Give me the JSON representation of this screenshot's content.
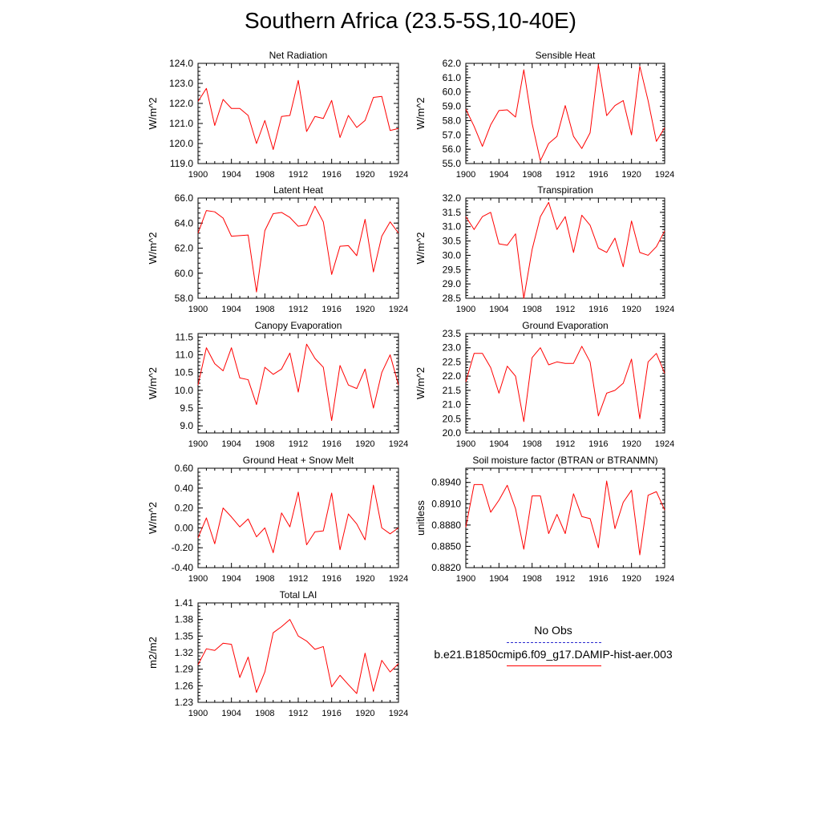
{
  "figure": {
    "title": "Southern Africa (23.5-5S,10-40E)",
    "line_color": "#ff0000",
    "obs_color": "#2b2bd0"
  },
  "legend": {
    "obs_label": "No Obs",
    "model_label": "b.e21.B1850cmip6.f09_g17.DAMIP-hist-aer.003"
  },
  "chart_data": [
    {
      "type": "line",
      "title": "Net Radiation",
      "ylabel": "W/m^2",
      "xlim": [
        1900,
        1924
      ],
      "x_ticks": [
        "1900",
        "1904",
        "1908",
        "1912",
        "1916",
        "1920",
        "1924"
      ],
      "ylim": [
        119.0,
        124.0
      ],
      "y_ticks": [
        "119.0",
        "120.0",
        "121.0",
        "122.0",
        "123.0",
        "124.0"
      ],
      "y_minor_step": 0.2,
      "x": [
        1900,
        1901,
        1902,
        1903,
        1904,
        1905,
        1906,
        1907,
        1908,
        1909,
        1910,
        1911,
        1912,
        1913,
        1914,
        1915,
        1916,
        1917,
        1918,
        1919,
        1920,
        1921,
        1922,
        1923,
        1924
      ],
      "series": [
        {
          "values": [
            122.1,
            122.75,
            120.9,
            122.2,
            121.75,
            121.75,
            121.4,
            120.0,
            121.15,
            119.7,
            121.35,
            121.4,
            123.15,
            120.6,
            121.35,
            121.25,
            122.15,
            120.3,
            121.4,
            120.8,
            121.15,
            122.3,
            122.35,
            120.65,
            120.75
          ]
        }
      ]
    },
    {
      "type": "line",
      "title": "Sensible Heat",
      "ylabel": "W/m^2",
      "xlim": [
        1900,
        1924
      ],
      "x_ticks": [
        "1900",
        "1904",
        "1908",
        "1912",
        "1916",
        "1920",
        "1924"
      ],
      "ylim": [
        55.0,
        62.0
      ],
      "y_ticks": [
        "55.0",
        "56.0",
        "57.0",
        "58.0",
        "59.0",
        "60.0",
        "61.0",
        "62.0"
      ],
      "y_minor_step": 0.2,
      "x": [
        1900,
        1901,
        1902,
        1903,
        1904,
        1905,
        1906,
        1907,
        1908,
        1909,
        1910,
        1911,
        1912,
        1913,
        1914,
        1915,
        1916,
        1917,
        1918,
        1919,
        1920,
        1921,
        1922,
        1923,
        1924
      ],
      "series": [
        {
          "values": [
            58.8,
            57.6,
            56.2,
            57.7,
            58.7,
            58.75,
            58.25,
            61.55,
            57.8,
            55.2,
            56.4,
            56.9,
            59.05,
            56.9,
            56.05,
            57.15,
            61.9,
            58.35,
            59.05,
            59.4,
            57.0,
            61.8,
            59.4,
            56.55,
            57.5
          ]
        }
      ]
    },
    {
      "type": "line",
      "title": "Latent Heat",
      "ylabel": "W/m^2",
      "xlim": [
        1900,
        1924
      ],
      "x_ticks": [
        "1900",
        "1904",
        "1908",
        "1912",
        "1916",
        "1920",
        "1924"
      ],
      "ylim": [
        58.0,
        66.0
      ],
      "y_ticks": [
        "58.0",
        "60.0",
        "62.0",
        "64.0",
        "66.0"
      ],
      "y_minor_step": 0.4,
      "x": [
        1900,
        1901,
        1902,
        1903,
        1904,
        1905,
        1906,
        1907,
        1908,
        1909,
        1910,
        1911,
        1912,
        1913,
        1914,
        1915,
        1916,
        1917,
        1918,
        1919,
        1920,
        1921,
        1922,
        1923,
        1924
      ],
      "series": [
        {
          "values": [
            63.2,
            65.0,
            64.9,
            64.4,
            62.95,
            63.0,
            63.05,
            58.5,
            63.4,
            64.75,
            64.85,
            64.45,
            63.75,
            63.85,
            65.35,
            64.1,
            59.9,
            62.15,
            62.2,
            61.4,
            64.3,
            60.1,
            62.95,
            64.1,
            63.2
          ]
        }
      ]
    },
    {
      "type": "line",
      "title": "Transpiration",
      "ylabel": "W/m^2",
      "xlim": [
        1900,
        1924
      ],
      "x_ticks": [
        "1900",
        "1904",
        "1908",
        "1912",
        "1916",
        "1920",
        "1924"
      ],
      "ylim": [
        28.5,
        32.0
      ],
      "y_ticks": [
        "28.5",
        "29.0",
        "29.5",
        "30.0",
        "30.5",
        "31.0",
        "31.5",
        "32.0"
      ],
      "y_minor_step": 0.1,
      "x": [
        1900,
        1901,
        1902,
        1903,
        1904,
        1905,
        1906,
        1907,
        1908,
        1909,
        1910,
        1911,
        1912,
        1913,
        1914,
        1915,
        1916,
        1917,
        1918,
        1919,
        1920,
        1921,
        1922,
        1923,
        1924
      ],
      "series": [
        {
          "values": [
            31.35,
            30.9,
            31.35,
            31.5,
            30.4,
            30.35,
            30.75,
            28.5,
            30.2,
            31.35,
            31.85,
            30.9,
            31.35,
            30.1,
            31.4,
            31.05,
            30.25,
            30.1,
            30.6,
            29.6,
            31.2,
            30.1,
            30.0,
            30.3,
            30.85
          ]
        }
      ]
    },
    {
      "type": "line",
      "title": "Canopy Evaporation",
      "ylabel": "W/m^2",
      "xlim": [
        1900,
        1924
      ],
      "x_ticks": [
        "1900",
        "1904",
        "1908",
        "1912",
        "1916",
        "1920",
        "1924"
      ],
      "ylim": [
        8.8,
        11.6
      ],
      "y_ticks": [
        "9.0",
        "9.5",
        "10.0",
        "10.5",
        "11.0",
        "11.5"
      ],
      "y_minor_step": 0.1,
      "x": [
        1900,
        1901,
        1902,
        1903,
        1904,
        1905,
        1906,
        1907,
        1908,
        1909,
        1910,
        1911,
        1912,
        1913,
        1914,
        1915,
        1916,
        1917,
        1918,
        1919,
        1920,
        1921,
        1922,
        1923,
        1924
      ],
      "series": [
        {
          "values": [
            10.15,
            11.2,
            10.75,
            10.55,
            11.2,
            10.35,
            10.3,
            9.6,
            10.65,
            10.45,
            10.6,
            11.05,
            9.95,
            11.3,
            10.9,
            10.65,
            9.15,
            10.7,
            10.15,
            10.05,
            10.6,
            9.5,
            10.5,
            11.0,
            10.15
          ]
        }
      ]
    },
    {
      "type": "line",
      "title": "Ground Evaporation",
      "ylabel": "W/m^2",
      "xlim": [
        1900,
        1924
      ],
      "x_ticks": [
        "1900",
        "1904",
        "1908",
        "1912",
        "1916",
        "1920",
        "1924"
      ],
      "ylim": [
        20.0,
        23.5
      ],
      "y_ticks": [
        "20.0",
        "20.5",
        "21.0",
        "21.5",
        "22.0",
        "22.5",
        "23.0",
        "23.5"
      ],
      "y_minor_step": 0.1,
      "x": [
        1900,
        1901,
        1902,
        1903,
        1904,
        1905,
        1906,
        1907,
        1908,
        1909,
        1910,
        1911,
        1912,
        1913,
        1914,
        1915,
        1916,
        1917,
        1918,
        1919,
        1920,
        1921,
        1922,
        1923,
        1924
      ],
      "series": [
        {
          "values": [
            21.8,
            22.8,
            22.8,
            22.3,
            21.4,
            22.35,
            22.0,
            20.4,
            22.65,
            23.0,
            22.4,
            22.5,
            22.45,
            22.45,
            23.05,
            22.5,
            20.6,
            21.4,
            21.5,
            21.75,
            22.6,
            20.5,
            22.5,
            22.8,
            22.1
          ]
        }
      ]
    },
    {
      "type": "line",
      "title": "Ground Heat + Snow Melt",
      "ylabel": "W/m^2",
      "xlim": [
        1900,
        1924
      ],
      "x_ticks": [
        "1900",
        "1904",
        "1908",
        "1912",
        "1916",
        "1920",
        "1924"
      ],
      "ylim": [
        -0.4,
        0.6
      ],
      "y_ticks": [
        "-0.40",
        "-0.20",
        "0.00",
        "0.20",
        "0.40",
        "0.60"
      ],
      "y_minor_step": 0.04,
      "x": [
        1900,
        1901,
        1902,
        1903,
        1904,
        1905,
        1906,
        1907,
        1908,
        1909,
        1910,
        1911,
        1912,
        1913,
        1914,
        1915,
        1916,
        1917,
        1918,
        1919,
        1920,
        1921,
        1922,
        1923,
        1924
      ],
      "series": [
        {
          "values": [
            -0.1,
            0.1,
            -0.16,
            0.2,
            0.11,
            0.01,
            0.09,
            -0.09,
            0.0,
            -0.25,
            0.15,
            0.01,
            0.36,
            -0.17,
            -0.04,
            -0.03,
            0.35,
            -0.22,
            0.14,
            0.04,
            -0.12,
            0.43,
            0.0,
            -0.06,
            0.0
          ]
        }
      ]
    },
    {
      "type": "line",
      "title": "Soil moisture factor (BTRAN or BTRANMN)",
      "ylabel": "unitless",
      "xlim": [
        1900,
        1924
      ],
      "x_ticks": [
        "1900",
        "1904",
        "1908",
        "1912",
        "1916",
        "1920",
        "1924"
      ],
      "ylim": [
        0.882,
        0.896
      ],
      "y_ticks": [
        "0.8820",
        "0.8850",
        "0.8880",
        "0.8910",
        "0.8940"
      ],
      "y_minor_step": 0.0006,
      "x": [
        1900,
        1901,
        1902,
        1903,
        1904,
        1905,
        1906,
        1907,
        1908,
        1909,
        1910,
        1911,
        1912,
        1913,
        1914,
        1915,
        1916,
        1917,
        1918,
        1919,
        1920,
        1921,
        1922,
        1923,
        1924
      ],
      "series": [
        {
          "values": [
            0.8877,
            0.8937,
            0.8937,
            0.8898,
            0.8915,
            0.8936,
            0.8903,
            0.8846,
            0.8921,
            0.8921,
            0.8868,
            0.8895,
            0.8868,
            0.8924,
            0.8892,
            0.8889,
            0.8848,
            0.8942,
            0.8875,
            0.8912,
            0.8929,
            0.8838,
            0.8922,
            0.8927,
            0.8901
          ]
        }
      ]
    },
    {
      "type": "line",
      "title": "Total LAI",
      "ylabel": "m2/m2",
      "xlim": [
        1900,
        1924
      ],
      "x_ticks": [
        "1900",
        "1904",
        "1908",
        "1912",
        "1916",
        "1920",
        "1924"
      ],
      "ylim": [
        1.23,
        1.41
      ],
      "y_ticks": [
        "1.23",
        "1.26",
        "1.29",
        "1.32",
        "1.35",
        "1.38",
        "1.41"
      ],
      "y_minor_step": 0.006,
      "x": [
        1900,
        1901,
        1902,
        1903,
        1904,
        1905,
        1906,
        1907,
        1908,
        1909,
        1910,
        1911,
        1912,
        1913,
        1914,
        1915,
        1916,
        1917,
        1918,
        1919,
        1920,
        1921,
        1922,
        1923,
        1924
      ],
      "series": [
        {
          "values": [
            1.298,
            1.327,
            1.324,
            1.337,
            1.335,
            1.275,
            1.312,
            1.248,
            1.285,
            1.356,
            1.367,
            1.38,
            1.35,
            1.341,
            1.326,
            1.331,
            1.258,
            1.279,
            1.262,
            1.246,
            1.319,
            1.25,
            1.306,
            1.285,
            1.3
          ]
        }
      ]
    }
  ]
}
